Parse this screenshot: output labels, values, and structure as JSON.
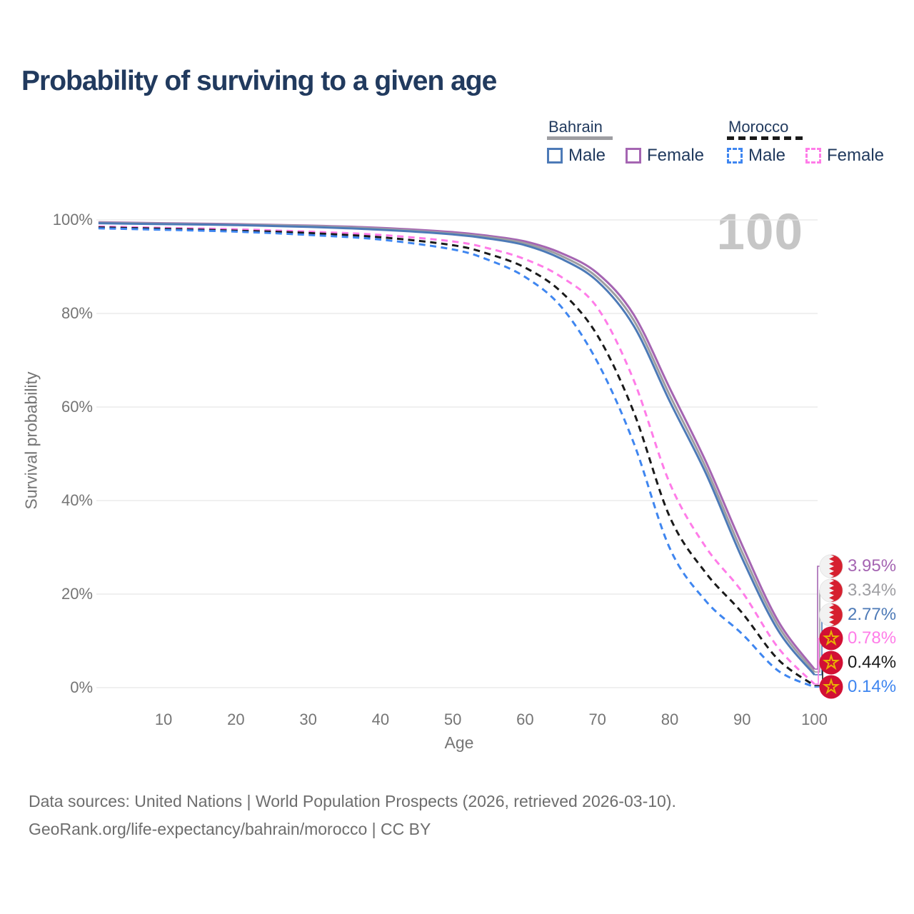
{
  "title": "Probability of surviving to a given age",
  "watermark_age": "100",
  "legend": {
    "groups": [
      {
        "name": "Bahrain",
        "line_style": "solid",
        "underline_color": "#9e9ea2",
        "items": [
          {
            "label": "Male",
            "color": "#4d7ab7"
          },
          {
            "label": "Female",
            "color": "#a565b2"
          }
        ]
      },
      {
        "name": "Morocco",
        "line_style": "dashed",
        "underline_color": "#1a1a1a",
        "items": [
          {
            "label": "Male",
            "color": "#3f86f0"
          },
          {
            "label": "Female",
            "color": "#ff7ce8"
          }
        ]
      }
    ]
  },
  "axes": {
    "x_label": "Age",
    "y_label": "Survival probability",
    "x_ticks": [
      "10",
      "20",
      "30",
      "40",
      "50",
      "60",
      "70",
      "80",
      "90",
      "100"
    ],
    "y_ticks": [
      "100%",
      "80%",
      "60%",
      "40%",
      "20%",
      "0%"
    ]
  },
  "chart_data": {
    "type": "line",
    "title": "Probability of surviving to a given age",
    "xlabel": "Age",
    "ylabel": "Survival probability",
    "x_range": [
      1,
      100
    ],
    "ylim_percent": [
      0,
      100
    ],
    "grid": "horizontal",
    "legend_position": "top-right",
    "ages": [
      1,
      10,
      20,
      30,
      40,
      50,
      55,
      60,
      65,
      70,
      75,
      80,
      85,
      90,
      95,
      100
    ],
    "series": [
      {
        "name": "Bahrain Female",
        "country": "Bahrain",
        "sex": "Female",
        "line": "solid",
        "color": "#a565b2",
        "end_label": "3.95%",
        "values": [
          99.5,
          99.3,
          99.1,
          98.8,
          98.3,
          97.4,
          96.6,
          95.4,
          92.9,
          88.6,
          79.8,
          64.0,
          48.3,
          30.5,
          14.2,
          3.95
        ]
      },
      {
        "name": "Bahrain Both sexes",
        "country": "Bahrain",
        "sex": "Both",
        "line": "solid",
        "color": "#9e9ea2",
        "end_label": "3.34%",
        "values": [
          99.4,
          99.2,
          99.0,
          98.7,
          98.1,
          97.1,
          96.3,
          95.0,
          92.3,
          87.7,
          78.6,
          62.5,
          47.0,
          29.0,
          13.2,
          3.34
        ]
      },
      {
        "name": "Bahrain Male",
        "country": "Bahrain",
        "sex": "Male",
        "line": "solid",
        "color": "#4d7ab7",
        "end_label": "2.77%",
        "values": [
          99.3,
          99.1,
          98.9,
          98.5,
          97.9,
          96.9,
          96.0,
          94.6,
          91.7,
          86.9,
          77.4,
          61.2,
          45.8,
          27.7,
          12.2,
          2.77
        ]
      },
      {
        "name": "Morocco Female",
        "country": "Morocco",
        "sex": "Female",
        "line": "dashed",
        "color": "#ff7ce8",
        "end_label": "0.78%",
        "values": [
          98.6,
          98.3,
          98.0,
          97.5,
          96.8,
          95.4,
          93.9,
          91.6,
          87.8,
          81.2,
          65.8,
          43.7,
          30.0,
          20.5,
          8.5,
          0.78
        ]
      },
      {
        "name": "Morocco Both sexes",
        "country": "Morocco",
        "sex": "Both",
        "line": "dashed",
        "color": "#1a1a1a",
        "end_label": "0.44%",
        "values": [
          98.4,
          98.1,
          97.7,
          97.2,
          96.3,
          94.6,
          92.7,
          89.8,
          84.6,
          75.3,
          59.0,
          36.5,
          24.5,
          16.0,
          6.0,
          0.44
        ]
      },
      {
        "name": "Morocco Male",
        "country": "Morocco",
        "sex": "Male",
        "line": "dashed",
        "color": "#3f86f0",
        "end_label": "0.14%",
        "values": [
          98.2,
          97.9,
          97.5,
          96.8,
          95.8,
          93.7,
          91.4,
          87.8,
          81.4,
          69.6,
          52.4,
          29.8,
          18.5,
          11.5,
          3.6,
          0.14
        ]
      }
    ]
  },
  "end_labels": [
    {
      "value": "3.95%",
      "color": "#a565b2",
      "flag": "bahrain"
    },
    {
      "value": "3.34%",
      "color": "#9e9ea2",
      "flag": "bahrain"
    },
    {
      "value": "2.77%",
      "color": "#4d7ab7",
      "flag": "bahrain"
    },
    {
      "value": "0.78%",
      "color": "#ff7ce8",
      "flag": "morocco"
    },
    {
      "value": "0.44%",
      "color": "#1a1a1a",
      "flag": "morocco"
    },
    {
      "value": "0.14%",
      "color": "#3f86f0",
      "flag": "morocco"
    }
  ],
  "flag_colors": {
    "bahrain_red": "#d6202f",
    "bahrain_white": "#f2f2f2",
    "morocco_red": "#d21034",
    "morocco_star": "#e8b004"
  },
  "footer": {
    "line1": "Data sources: United Nations | World Population Prospects (2026, retrieved 2026-03-10).",
    "line2": "GeoRank.org/life-expectancy/bahrain/morocco | CC BY"
  }
}
